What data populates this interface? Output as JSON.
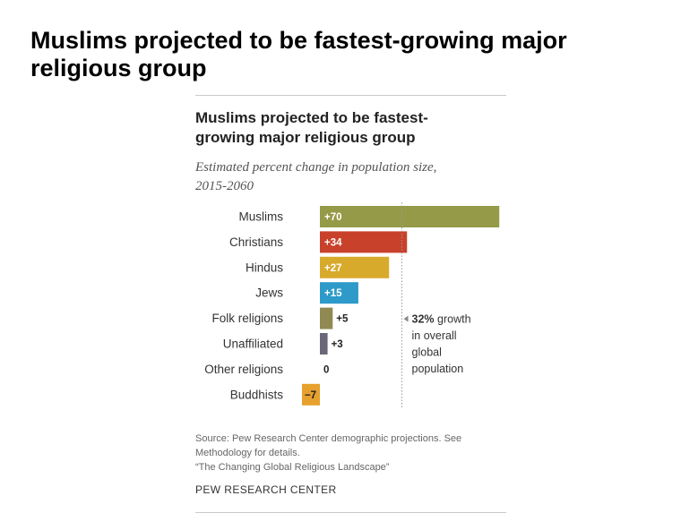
{
  "headline": "Muslims projected to be fastest-growing major religious group",
  "chart_data": {
    "type": "bar",
    "orientation": "horizontal",
    "title_lines": [
      "Muslims projected to be fastest-",
      "growing major religious group"
    ],
    "subtitle_lines": [
      "Estimated percent change in population size,",
      "2015-2060"
    ],
    "categories": [
      "Muslims",
      "Christians",
      "Hindus",
      "Jews",
      "Folk religions",
      "Unaffiliated",
      "Other religions",
      "Buddhists"
    ],
    "values": [
      70,
      34,
      27,
      15,
      5,
      3,
      0,
      -7
    ],
    "value_labels": [
      "+70",
      "+34",
      "+27",
      "+15",
      "+5",
      "+3",
      "0",
      "−7"
    ],
    "colors": [
      "#949a47",
      "#c8412b",
      "#d8aa2c",
      "#2d9ac9",
      "#918953",
      "#6b6678",
      "#cccccc",
      "#e6a12e"
    ],
    "xlim": [
      -7,
      70
    ],
    "reference_line": {
      "value": 32,
      "label_value": "32%",
      "label_lines": [
        "growth",
        "in overall",
        "global",
        "population"
      ]
    },
    "xlabel": "",
    "ylabel": "",
    "legend": "none"
  },
  "source_lines": [
    "Source: Pew Research Center demographic projections. See",
    "Methodology for details.",
    "“The Changing Global Religious Landscape”"
  ],
  "credit": "PEW RESEARCH CENTER"
}
